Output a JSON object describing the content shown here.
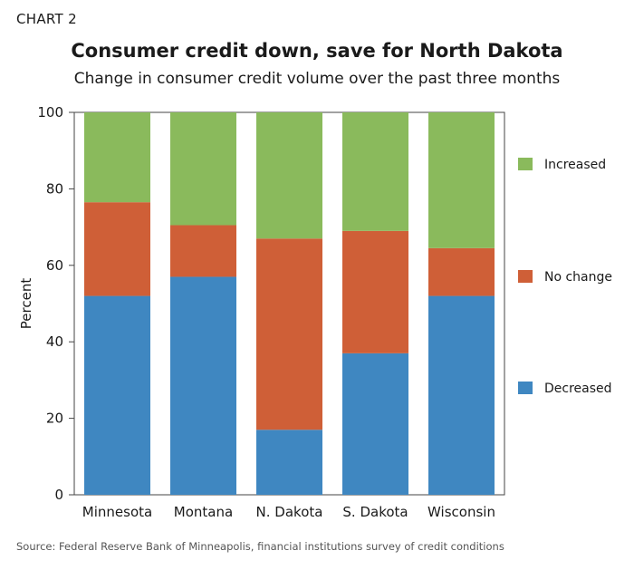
{
  "header": {
    "chart_number": "CHART 2",
    "title": "Consumer credit down, save for North Dakota",
    "subtitle": "Change in consumer credit volume over the past three months"
  },
  "source": "Source: Federal Reserve Bank of Minneapolis, financial institutions survey of credit conditions",
  "colors": {
    "decreased": "#3f87c1",
    "no_change": "#cf5f37",
    "increased": "#8aba5c"
  },
  "chart_data": {
    "type": "bar",
    "stacked": true,
    "title": "Consumer credit down, save for North Dakota",
    "subtitle": "Change in consumer credit volume over the past three months",
    "xlabel": "",
    "ylabel": "Percent",
    "ylim": [
      0,
      100
    ],
    "yticks": [
      0,
      20,
      40,
      60,
      80,
      100
    ],
    "grid": false,
    "legend_position": "right",
    "categories": [
      "Minnesota",
      "Montana",
      "N. Dakota",
      "S. Dakota",
      "Wisconsin"
    ],
    "series": [
      {
        "name": "Decreased",
        "color": "#3f87c1",
        "values": [
          52,
          57,
          17,
          37,
          52
        ]
      },
      {
        "name": "No change",
        "color": "#cf5f37",
        "values": [
          24.5,
          13.5,
          50,
          32,
          12.5
        ]
      },
      {
        "name": "Increased",
        "color": "#8aba5c",
        "values": [
          23.5,
          29.5,
          33,
          31,
          35.5
        ]
      }
    ],
    "legend_order": [
      "Increased",
      "No change",
      "Decreased"
    ]
  }
}
